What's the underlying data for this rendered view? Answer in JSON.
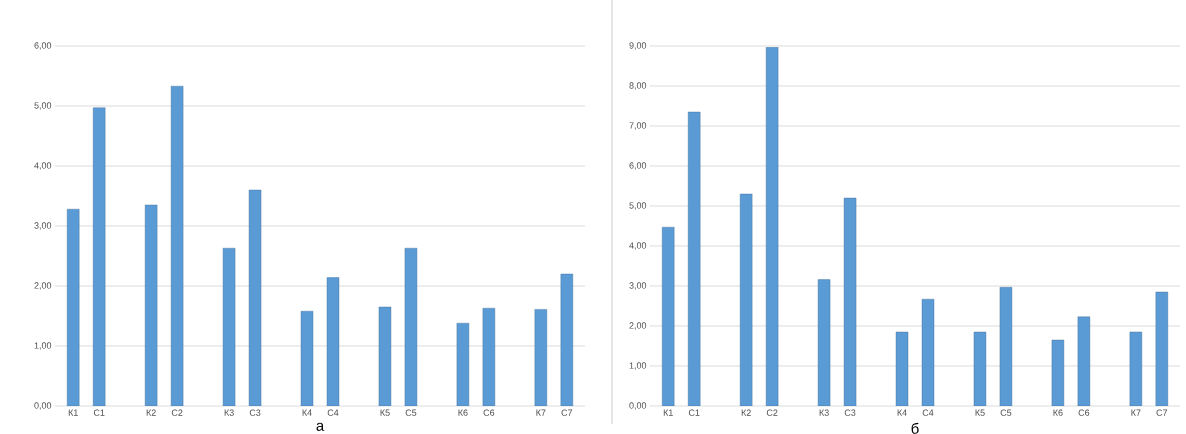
{
  "chart_data": [
    {
      "type": "bar",
      "xlabel": "а",
      "categories": [
        "К1",
        "С1",
        "К2",
        "С2",
        "К3",
        "С3",
        "К4",
        "С4",
        "К5",
        "С5",
        "К6",
        "С6",
        "К7",
        "С7"
      ],
      "values": [
        3.28,
        4.97,
        3.35,
        5.33,
        2.63,
        3.6,
        1.58,
        2.14,
        1.65,
        2.63,
        1.38,
        1.63,
        1.61,
        2.2
      ],
      "color": "#5b9bd5",
      "ylim": [
        0,
        6
      ],
      "yticks": [
        {
          "value": 0,
          "label": "0,00"
        },
        {
          "value": 1,
          "label": "1,00"
        },
        {
          "value": 2,
          "label": "2,00"
        },
        {
          "value": 3,
          "label": "3,00"
        },
        {
          "value": 4,
          "label": "4,00"
        },
        {
          "value": 5,
          "label": "5,00"
        },
        {
          "value": 6,
          "label": "6,00"
        }
      ],
      "grid": "y"
    },
    {
      "type": "bar",
      "xlabel": "б",
      "categories": [
        "К1",
        "С1",
        "К2",
        "С2",
        "К3",
        "С3",
        "К4",
        "С4",
        "К5",
        "С5",
        "К6",
        "С6",
        "К7",
        "С7"
      ],
      "values": [
        4.47,
        7.35,
        5.3,
        8.97,
        3.16,
        5.2,
        1.85,
        2.67,
        1.85,
        2.97,
        1.65,
        2.23,
        1.85,
        2.85
      ],
      "color": "#5b9bd5",
      "ylim": [
        0,
        9
      ],
      "yticks": [
        {
          "value": 0,
          "label": "0,00"
        },
        {
          "value": 1,
          "label": "1,00"
        },
        {
          "value": 2,
          "label": "2,00"
        },
        {
          "value": 3,
          "label": "3,00"
        },
        {
          "value": 4,
          "label": "4,00"
        },
        {
          "value": 5,
          "label": "5,00"
        },
        {
          "value": 6,
          "label": "6,00"
        },
        {
          "value": 7,
          "label": "7,00"
        },
        {
          "value": 8,
          "label": "8,00"
        },
        {
          "value": 9,
          "label": "9,00"
        }
      ],
      "grid": "y"
    }
  ]
}
